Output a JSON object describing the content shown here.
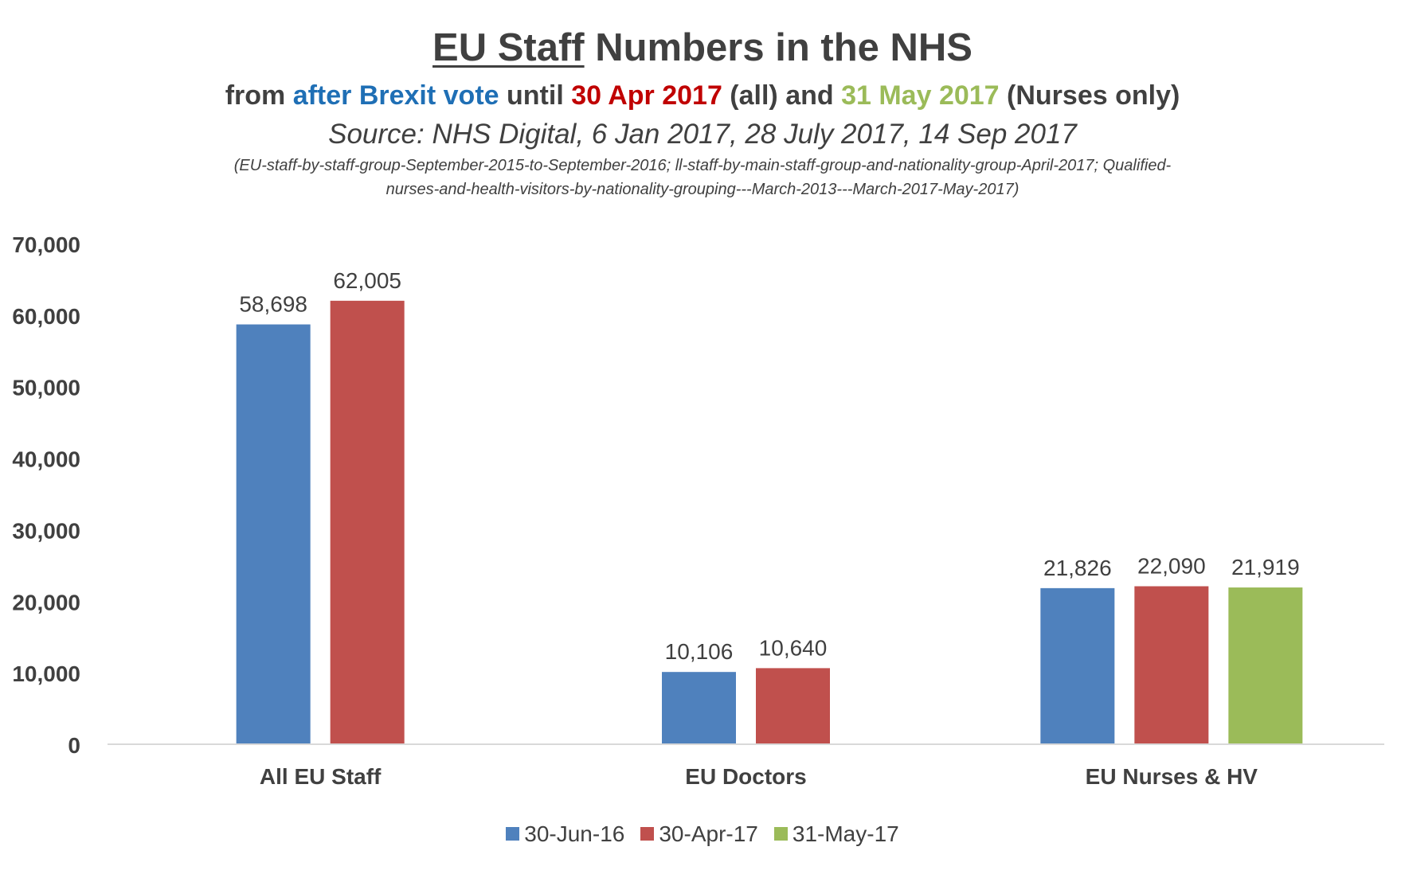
{
  "header": {
    "title_part1": "EU Staff",
    "title_part2": "Numbers in the NHS",
    "subtitle": {
      "p1": "from ",
      "p2": "after Brexit vote",
      "p3": " until ",
      "p4": "30 Apr 2017",
      "p5": " (all) and ",
      "p6": "31 May 2017",
      "p7": " (Nurses only)"
    },
    "source": "Source: NHS Digital, 6 Jan 2017, 28 July 2017, 14 Sep 2017",
    "refs_line1": "(EU-staff-by-staff-group-September-2015-to-September-2016; ll-staff-by-main-staff-group-and-nationality-group-April-2017; Qualified-",
    "refs_line2": "nurses-and-health-visitors-by-nationality-grouping---March-2013---March-2017-May-2017)"
  },
  "colors": {
    "text": "#404040",
    "blue_text": "#1f6fb5",
    "red_text": "#c00000",
    "green_text": "#9bbb59",
    "axis": "#d9d9d9"
  },
  "chart_data": {
    "type": "bar",
    "title": "EU Staff Numbers in the NHS",
    "categories": [
      "All EU Staff",
      "EU Doctors",
      "EU Nurses & HV"
    ],
    "ylim": [
      0,
      70000
    ],
    "yticks": [
      0,
      10000,
      20000,
      30000,
      40000,
      50000,
      60000,
      70000
    ],
    "ytick_labels": [
      "0",
      "10,000",
      "20,000",
      "30,000",
      "40,000",
      "50,000",
      "60,000",
      "70,000"
    ],
    "grid": false,
    "legend_position": "bottom",
    "series": [
      {
        "name": "30-Jun-16",
        "color": "#4f81bd",
        "values": [
          58698,
          10106,
          21826
        ],
        "labels": [
          "58,698",
          "10,106",
          "21,826"
        ]
      },
      {
        "name": "30-Apr-17",
        "color": "#c0504d",
        "values": [
          62005,
          10640,
          22090
        ],
        "labels": [
          "62,005",
          "10,640",
          "22,090"
        ]
      },
      {
        "name": "31-May-17",
        "color": "#9bbb59",
        "values": [
          null,
          null,
          21919
        ],
        "labels": [
          null,
          null,
          "21,919"
        ]
      }
    ]
  }
}
